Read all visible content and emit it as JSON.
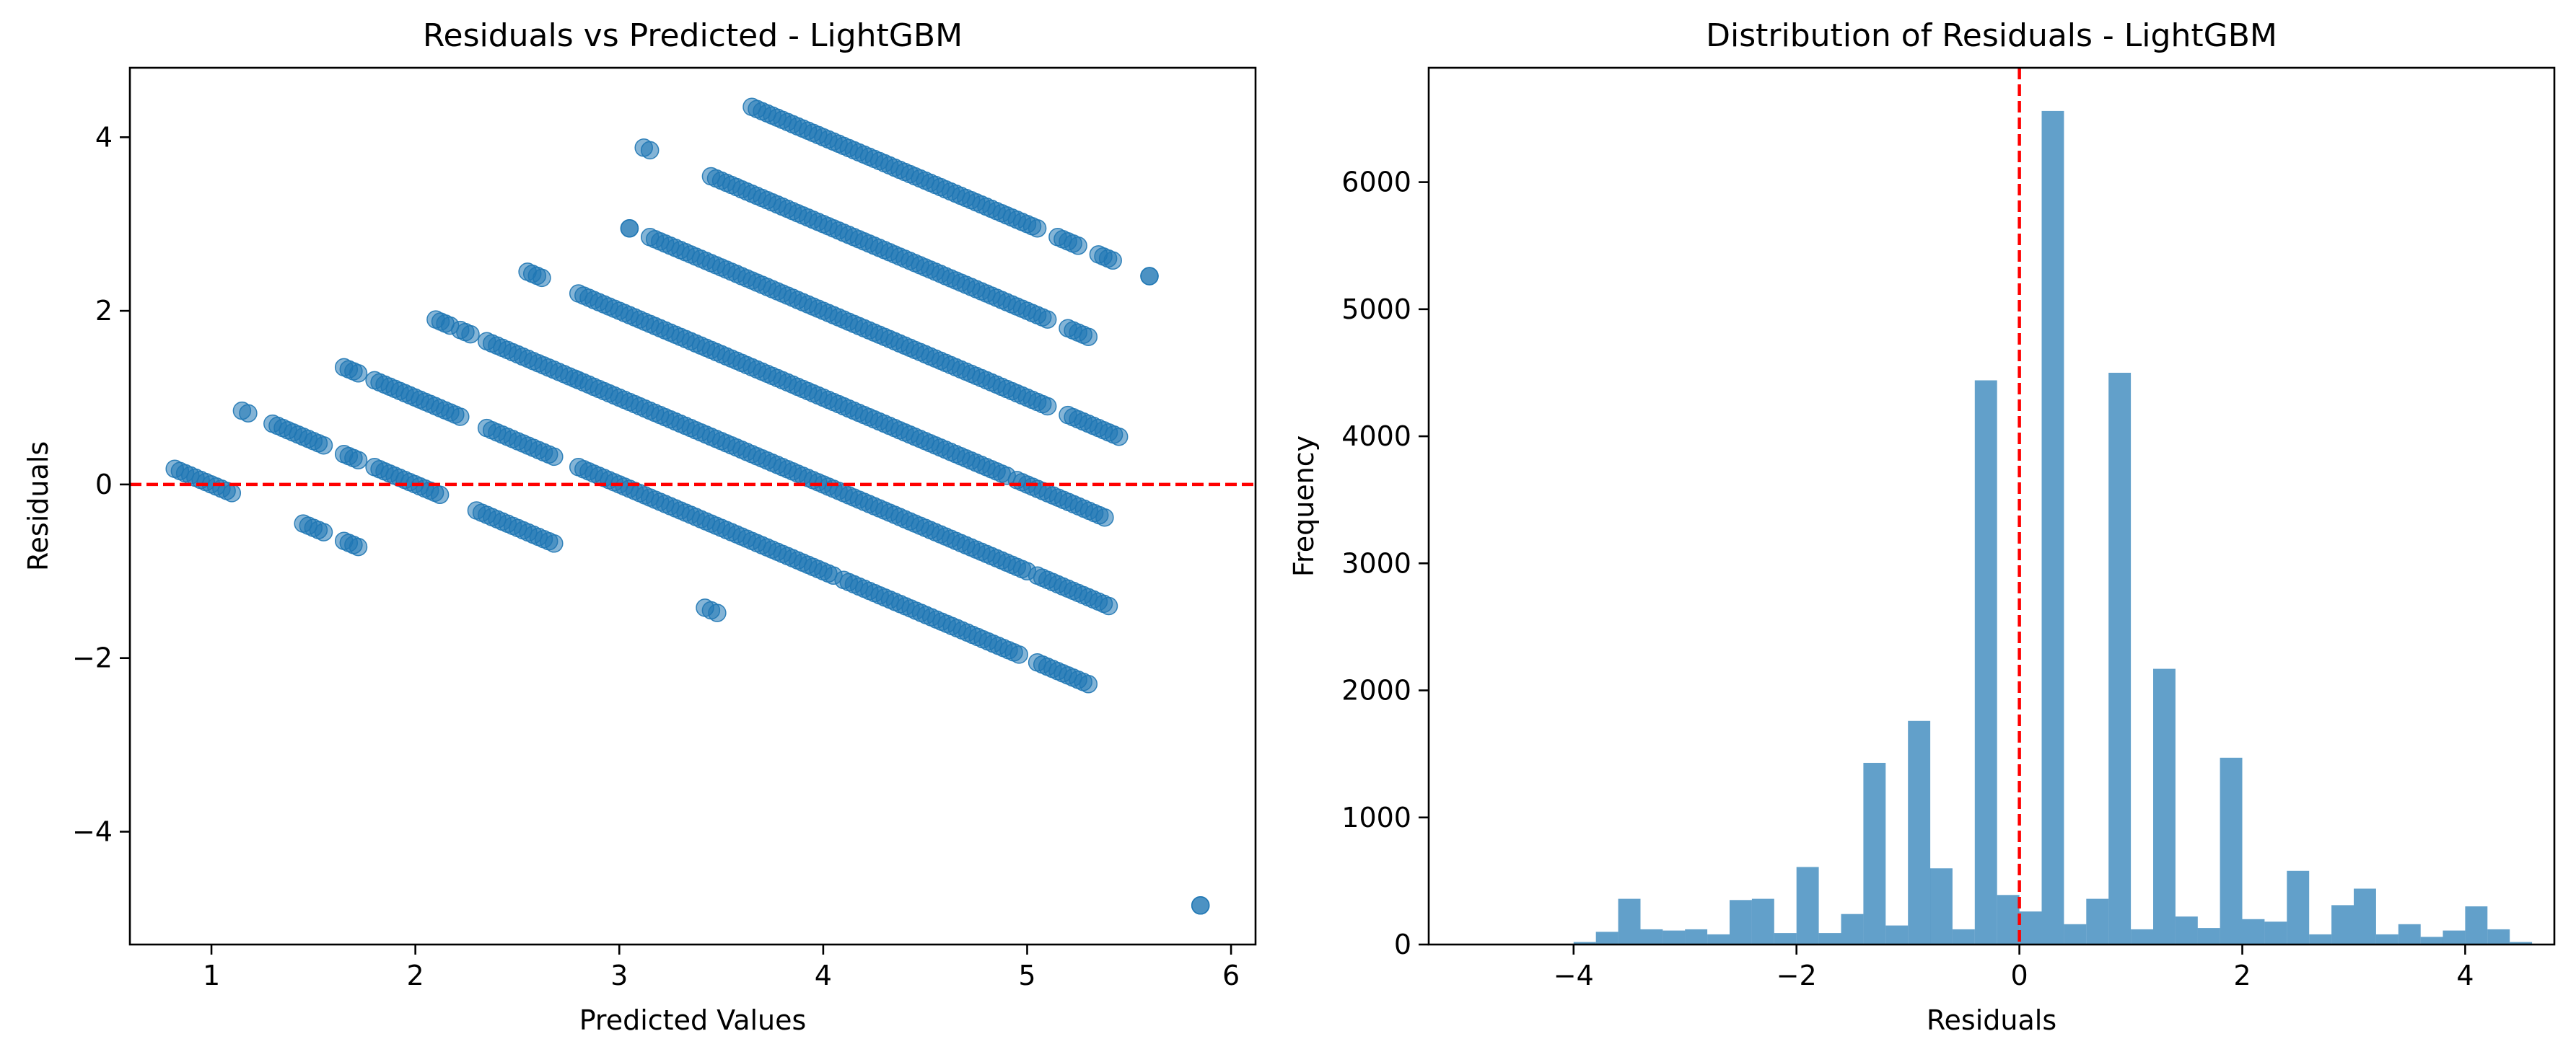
{
  "chart_data": [
    {
      "type": "scatter",
      "title": "Residuals vs Predicted - LightGBM",
      "xlabel": "Predicted Values",
      "ylabel": "Residuals",
      "xlim": [
        0.6,
        6.12
      ],
      "ylim": [
        -5.3,
        4.8
      ],
      "xticks": [
        1,
        2,
        3,
        4,
        5,
        6
      ],
      "yticks": [
        -4,
        -2,
        0,
        2,
        4
      ],
      "xtick_labels": [
        "1",
        "2",
        "3",
        "4",
        "5",
        "6"
      ],
      "ytick_labels": [
        "−4",
        "−2",
        "0",
        "2",
        "4"
      ],
      "color": "#1f77b4",
      "alpha": 0.55,
      "reference_line": {
        "y": 0,
        "color": "#ff0000",
        "style": "dashed"
      },
      "series": [
        {
          "target": 1,
          "segments": [
            [
              0.82,
              1.1
            ],
            [
              1.45,
              1.55
            ],
            [
              1.65,
              1.72
            ]
          ]
        },
        {
          "target": 2,
          "segments": [
            [
              1.15,
              1.18
            ],
            [
              1.3,
              1.55
            ],
            [
              1.65,
              1.72
            ],
            [
              1.8,
              2.12
            ],
            [
              2.3,
              2.68
            ],
            [
              3.42,
              3.48
            ]
          ]
        },
        {
          "target": 3,
          "segments": [
            [
              1.65,
              1.72
            ],
            [
              1.8,
              2.22
            ],
            [
              2.35,
              2.68
            ],
            [
              2.8,
              4.05
            ],
            [
              4.1,
              4.96
            ],
            [
              5.05,
              5.3
            ]
          ]
        },
        {
          "target": 4,
          "segments": [
            [
              2.1,
              2.17
            ],
            [
              2.22,
              2.27
            ],
            [
              2.35,
              2.78
            ],
            [
              2.8,
              5.0
            ],
            [
              5.05,
              5.4
            ]
          ]
        },
        {
          "target": 5,
          "segments": [
            [
              2.55,
              2.62
            ],
            [
              2.8,
              4.9
            ],
            [
              4.95,
              5.38
            ]
          ]
        },
        {
          "target": 6,
          "segments": [
            [
              3.05,
              3.05
            ],
            [
              3.15,
              5.1
            ],
            [
              5.2,
              5.45
            ]
          ]
        },
        {
          "target": 7,
          "segments": [
            [
              3.12,
              3.15
            ],
            [
              3.45,
              5.1
            ],
            [
              5.2,
              5.3
            ]
          ]
        },
        {
          "target": 8,
          "segments": [
            [
              3.65,
              5.05
            ],
            [
              5.15,
              5.25
            ],
            [
              5.35,
              5.42
            ],
            [
              5.6,
              5.6
            ]
          ]
        },
        {
          "target": 1,
          "segments": [
            [
              5.85,
              5.85
            ]
          ]
        }
      ]
    },
    {
      "type": "bar",
      "title": "Distribution of Residuals - LightGBM",
      "xlabel": "Residuals",
      "ylabel": "Frequency",
      "xlim": [
        -5.3,
        4.8
      ],
      "ylim": [
        0,
        6900
      ],
      "xticks": [
        -4,
        -2,
        0,
        2,
        4
      ],
      "yticks": [
        0,
        1000,
        2000,
        3000,
        4000,
        5000,
        6000
      ],
      "xtick_labels": [
        "−4",
        "−2",
        "0",
        "2",
        "4"
      ],
      "ytick_labels": [
        "0",
        "1000",
        "2000",
        "3000",
        "4000",
        "5000",
        "6000"
      ],
      "color": "#1f77b4",
      "alpha": 0.7,
      "reference_line": {
        "x": 0,
        "color": "#ff0000",
        "style": "dashed"
      },
      "bin_start": -4.0,
      "bin_width": 0.2,
      "values": [
        20,
        100,
        360,
        120,
        110,
        120,
        80,
        350,
        360,
        90,
        610,
        90,
        240,
        1430,
        150,
        1760,
        600,
        120,
        4440,
        390,
        260,
        6560,
        160,
        360,
        4500,
        120,
        2170,
        220,
        130,
        1470,
        200,
        180,
        580,
        80,
        310,
        440,
        80,
        160,
        60,
        110,
        300,
        120,
        20
      ]
    }
  ]
}
